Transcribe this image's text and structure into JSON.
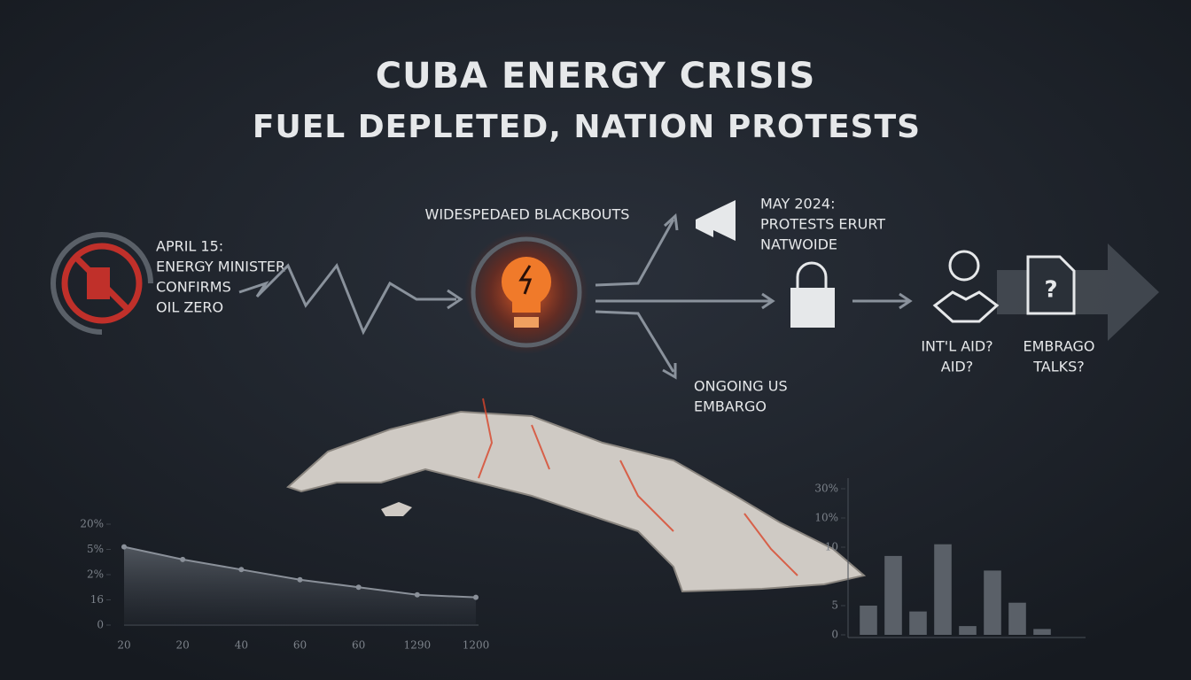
{
  "header": {
    "title": "CUBA ENERGY CRISIS",
    "subtitle": "FUEL DEPLETED, NATION PROTESTS"
  },
  "nodes": [
    {
      "lines": [
        "APRIL 15:",
        "ENERGY MINISTER",
        "CONFIRMS",
        "OIL ZERO"
      ]
    },
    {
      "lines": [
        "WIDESPEDAED BLACKBOUTS"
      ]
    },
    {
      "lines": [
        "MAY 2024:",
        "PROTESTS ERURT",
        "NATWOIDE"
      ]
    },
    {
      "lines": [
        "ONGOING US",
        "EMBARGO"
      ]
    },
    {
      "lines": [
        "INT'L AID?",
        "AID?"
      ]
    },
    {
      "lines": [
        "EMBRAGO",
        "TALKS?"
      ]
    }
  ],
  "chart_data": [
    {
      "type": "area",
      "color": "#8a9099",
      "categories": [
        "20",
        "20",
        "40",
        "60",
        "60",
        "1290",
        "1200"
      ],
      "values": [
        3.1,
        2.6,
        2.2,
        1.8,
        1.5,
        1.2,
        1.1
      ],
      "ylim": [
        0,
        4
      ],
      "yticks": [
        {
          "value": 0,
          "label": "0"
        },
        {
          "value": 1,
          "label": "16"
        },
        {
          "value": 2,
          "label": "2%"
        },
        {
          "value": 3,
          "label": "5%"
        },
        {
          "value": 4,
          "label": "20%"
        }
      ]
    },
    {
      "type": "bar",
      "color": "#5a6068",
      "categories": [
        null,
        null,
        null,
        null,
        null,
        null,
        null,
        null
      ],
      "values": [
        1.0,
        2.7,
        0.8,
        3.1,
        0.3,
        2.2,
        1.1,
        0.2
      ],
      "ylim": [
        0,
        5
      ],
      "yticks": [
        0,
        {
          "value": 1,
          "label": "5"
        },
        {
          "value": 3,
          "label": "10"
        },
        {
          "value": 4,
          "label": "10%"
        },
        {
          "value": 5,
          "label": "30%"
        }
      ]
    }
  ]
}
